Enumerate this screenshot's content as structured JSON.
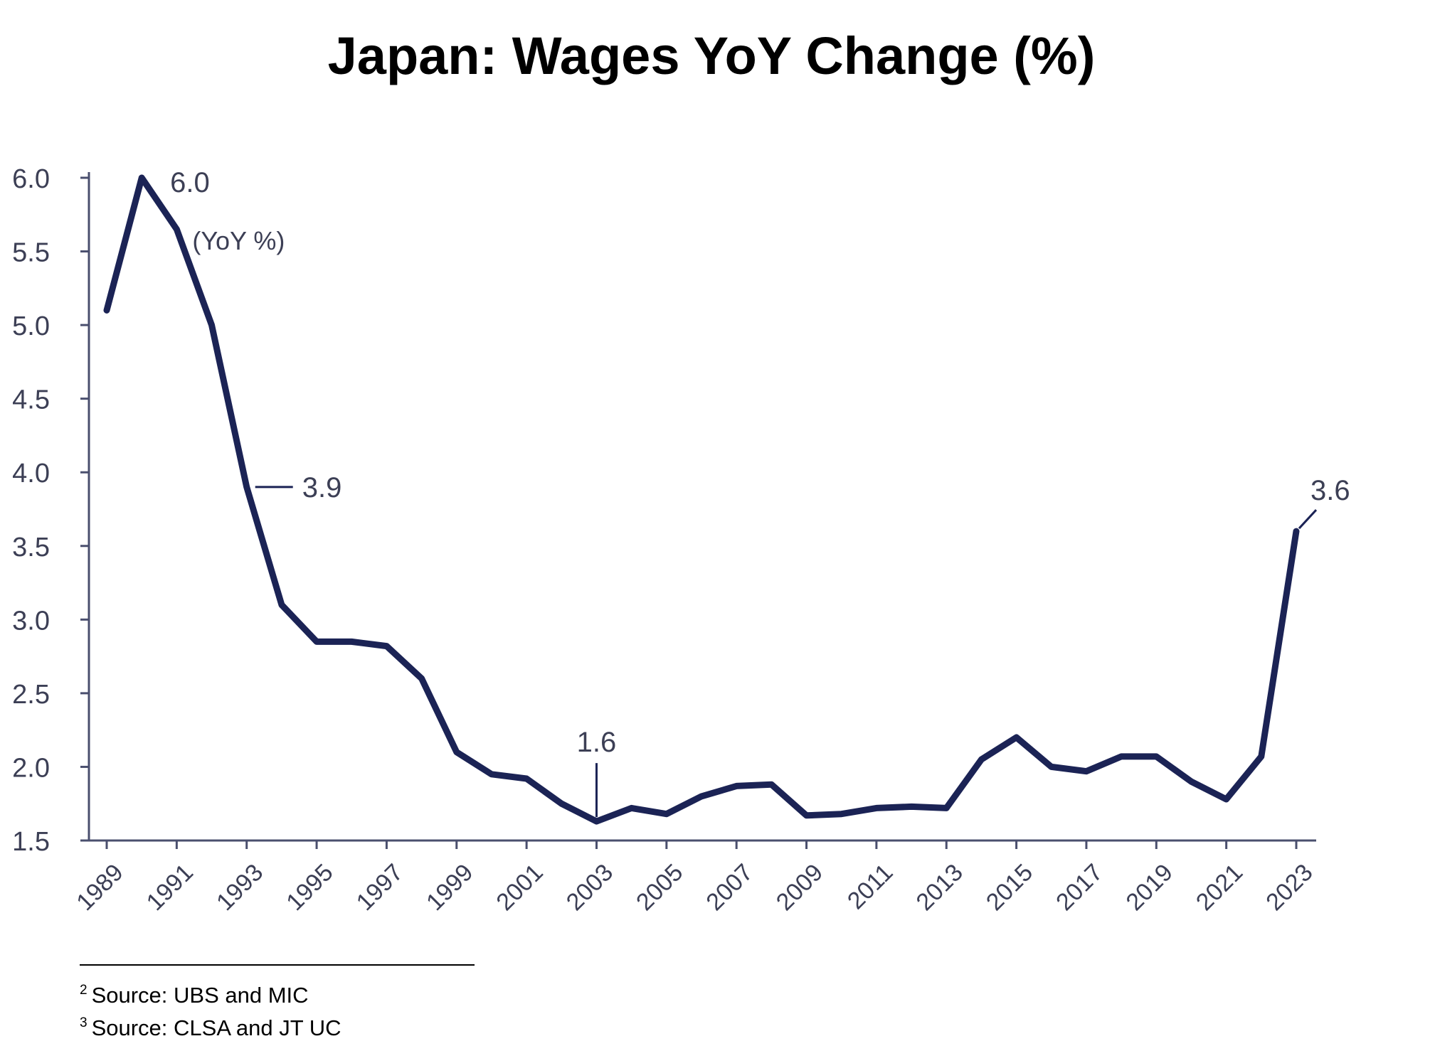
{
  "slide": {
    "title": "Japan: Wages YoY Change (%)"
  },
  "footnotes": [
    {
      "marker": "2",
      "text": "Source: UBS and MIC"
    },
    {
      "marker": "3",
      "text": "Source: CLSA and JT UC"
    }
  ],
  "colors": {
    "line": "#1b2355",
    "axis": "#4a4f6e",
    "label": "#3c3f55"
  },
  "chart_data": {
    "type": "line",
    "title": "Japan: Wages YoY Change (%)",
    "xlabel": "",
    "ylabel": "",
    "unit_label": "(YoY %)",
    "xlim": [
      1989,
      2023
    ],
    "ylim": [
      1.5,
      6.0
    ],
    "yticks": [
      "1.5",
      "2.0",
      "2.5",
      "3.0",
      "3.5",
      "4.0",
      "4.5",
      "5.0",
      "5.5",
      "6.0"
    ],
    "xticks": [
      "1989",
      "1991",
      "1993",
      "1995",
      "1997",
      "1999",
      "2001",
      "2003",
      "2005",
      "2007",
      "2009",
      "2011",
      "2013",
      "2015",
      "2017",
      "2019",
      "2021",
      "2023"
    ],
    "grid": false,
    "legend": "none",
    "series": [
      {
        "name": "Wages YoY Change (%)",
        "x": [
          1989,
          1990,
          1991,
          1992,
          1993,
          1994,
          1995,
          1996,
          1997,
          1998,
          1999,
          2000,
          2001,
          2002,
          2003,
          2004,
          2005,
          2006,
          2007,
          2008,
          2009,
          2010,
          2011,
          2012,
          2013,
          2014,
          2015,
          2016,
          2017,
          2018,
          2019,
          2020,
          2021,
          2022,
          2023
        ],
        "values": [
          5.1,
          6.0,
          5.65,
          5.0,
          3.9,
          3.1,
          2.85,
          2.85,
          2.82,
          2.6,
          2.1,
          1.95,
          1.92,
          1.75,
          1.63,
          1.72,
          1.68,
          1.8,
          1.87,
          1.88,
          1.67,
          1.68,
          1.72,
          1.73,
          1.72,
          2.05,
          2.2,
          2.0,
          1.97,
          2.07,
          2.07,
          1.9,
          1.78,
          2.07,
          3.6
        ]
      }
    ],
    "annotations": [
      {
        "label": "6.0",
        "x": 1990,
        "y": 6.0
      },
      {
        "label": "3.9",
        "x": 1993,
        "y": 3.9
      },
      {
        "label": "1.6",
        "x": 2003,
        "y": 1.63
      },
      {
        "label": "3.6",
        "x": 2023,
        "y": 3.6
      }
    ]
  }
}
